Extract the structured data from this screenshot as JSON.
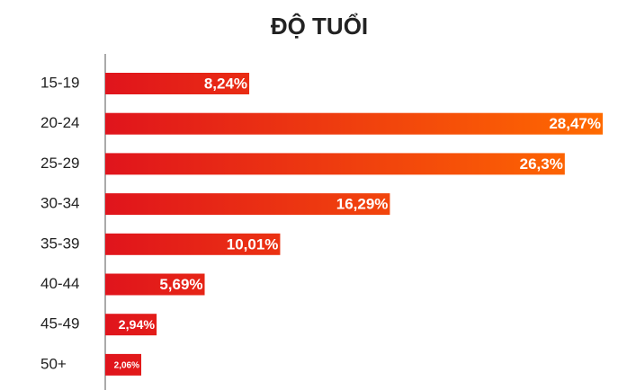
{
  "chart_data": {
    "type": "hbar",
    "title": "ĐỘ TUỔI",
    "categories": [
      "15-19",
      "20-24",
      "25-29",
      "30-34",
      "35-39",
      "40-44",
      "45-49",
      "50+"
    ],
    "values": [
      8.24,
      28.47,
      26.3,
      16.29,
      10.01,
      5.69,
      2.94,
      2.06
    ],
    "value_labels": [
      "8,24%",
      "28,47%",
      "26,3%",
      "16,29%",
      "10,01%",
      "5,69%",
      "2,94%",
      "2,06%"
    ],
    "colors": [
      "#e0141c",
      "#ff6a00"
    ]
  }
}
